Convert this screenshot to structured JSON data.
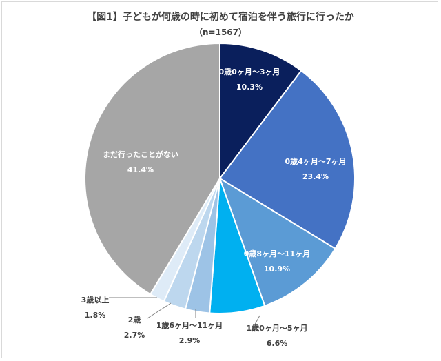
{
  "chart_data": {
    "type": "pie",
    "title": "【図1】子どもが何歳の時に初めて宿泊を伴う旅行に行ったか",
    "subtitle": "（n=1567）",
    "slices": [
      {
        "label": "0歳0ヶ月～3ヶ月",
        "value": 10.3,
        "value_label": "10.3%",
        "color": "#0a1f5c"
      },
      {
        "label": "0歳4ヶ月～7ヶ月",
        "value": 23.4,
        "value_label": "23.4%",
        "color": "#4472c4"
      },
      {
        "label": "0歳8ヶ月～11ヶ月",
        "value": 10.9,
        "value_label": "10.9%",
        "color": "#5b9bd5"
      },
      {
        "label": "1歳0ヶ月～5ヶ月",
        "value": 6.6,
        "value_label": "6.6%",
        "color": "#00b0f0"
      },
      {
        "label": "1歳6ヶ月～11ヶ月",
        "value": 2.9,
        "value_label": "2.9%",
        "color": "#9dc3e6"
      },
      {
        "label": "2歳",
        "value": 2.7,
        "value_label": "2.7%",
        "color": "#bdd7ee"
      },
      {
        "label": "3歳以上",
        "value": 1.8,
        "value_label": "1.8%",
        "color": "#deebf7"
      },
      {
        "label": "まだ行ったことがない",
        "value": 41.4,
        "value_label": "41.4%",
        "color": "#a6a6a6"
      }
    ]
  }
}
